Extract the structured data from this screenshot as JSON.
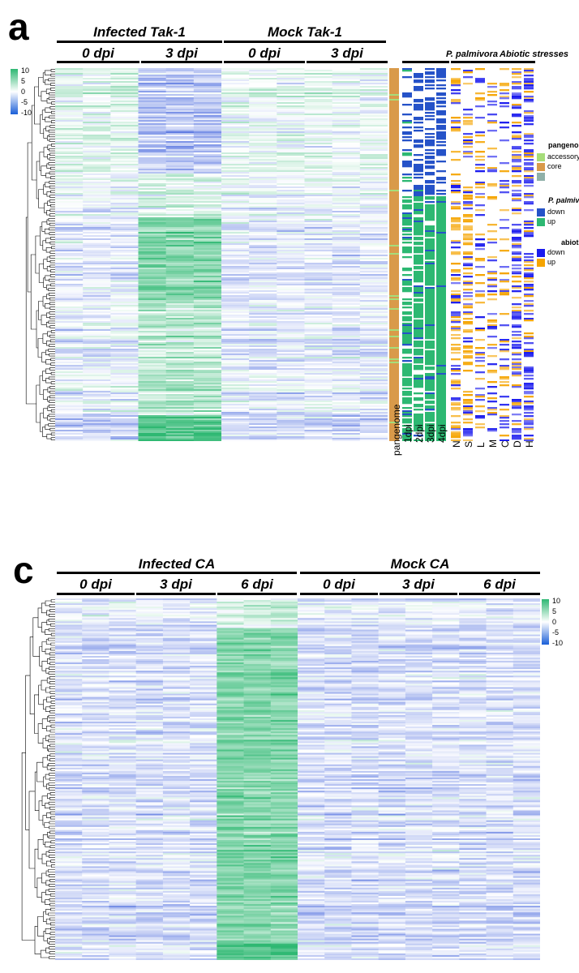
{
  "panel_a": {
    "letter": "a",
    "groups": [
      "Infected Tak-1",
      "Mock Tak-1"
    ],
    "timepoints": [
      "0 dpi",
      "3 dpi",
      "0 dpi",
      "3 dpi"
    ],
    "colorscale_ticks": [
      "10",
      "5",
      "0",
      "-5",
      "-10"
    ],
    "annotation_headers": [
      "P. palmivora",
      "Abiotic stresses"
    ],
    "annotation_columns": [
      "pangenome",
      "1dpi",
      "2dpi",
      "3dpi",
      "4dpi",
      "N",
      "S",
      "L",
      "M",
      "C",
      "D",
      "H"
    ],
    "legend": {
      "pangenome": {
        "title": "pangenome",
        "items": [
          "accessory",
          "core",
          ""
        ]
      },
      "ppalm": {
        "title": "P. palmivora",
        "items": [
          "down",
          "up"
        ]
      },
      "abiotic": {
        "title": "abiotic",
        "items": [
          "down",
          "up"
        ]
      }
    }
  },
  "panel_c": {
    "letter": "c",
    "groups": [
      "Infected CA",
      "Mock CA"
    ],
    "timepoints": [
      "0 dpi",
      "3 dpi",
      "6 dpi",
      "0 dpi",
      "3 dpi",
      "6 dpi"
    ],
    "colorscale_ticks": [
      "10",
      "5",
      "0",
      "-5",
      "-10"
    ]
  },
  "colors": {
    "high": "#2eb872",
    "mid": "#ffffff",
    "low": "#2a4fd8",
    "core": "#d99a4a",
    "accessory": "#a6dd7a",
    "other": "#8fb0a8",
    "pp_down": "#2552c8",
    "pp_up": "#2db872",
    "ab_down": "#1a1aee",
    "ab_up": "#f5a400"
  },
  "chart_data": [
    {
      "type": "heatmap",
      "title": "a",
      "column_groups": [
        {
          "name": "Infected Tak-1",
          "timepoints": [
            "0 dpi",
            "3 dpi"
          ]
        },
        {
          "name": "Mock Tak-1",
          "timepoints": [
            "0 dpi",
            "3 dpi"
          ]
        }
      ],
      "columns": 12,
      "rows": 600,
      "value_range": [
        -10,
        10
      ],
      "colorscale": [
        "-10 blue",
        "0 white",
        "10 green"
      ],
      "cluster_profile": [
        {
          "rows_frac": [
            0.0,
            0.28
          ],
          "infected_3dpi": -3,
          "infected_0dpi": 1,
          "mock": 0.5
        },
        {
          "rows_frac": [
            0.28,
            0.4
          ],
          "infected_3dpi": 1.5,
          "infected_0dpi": 0,
          "mock": 0
        },
        {
          "rows_frac": [
            0.4,
            0.62
          ],
          "infected_3dpi": 6,
          "infected_0dpi": -1,
          "mock": -1
        },
        {
          "rows_frac": [
            0.62,
            0.93
          ],
          "infected_3dpi": 3,
          "infected_0dpi": -0.5,
          "mock": -1
        },
        {
          "rows_frac": [
            0.93,
            1.0
          ],
          "infected_3dpi": 8,
          "infected_0dpi": -2,
          "mock": -2
        }
      ],
      "annotations": [
        "pangenome",
        "P. palmivora 1dpi-4dpi",
        "Abiotic stresses N S L M C D H"
      ]
    },
    {
      "type": "heatmap",
      "title": "c",
      "column_groups": [
        {
          "name": "Infected CA",
          "timepoints": [
            "0 dpi",
            "3 dpi",
            "6 dpi"
          ]
        },
        {
          "name": "Mock CA",
          "timepoints": [
            "0 dpi",
            "3 dpi",
            "6 dpi"
          ]
        }
      ],
      "columns": 18,
      "rows": 600,
      "value_range": [
        -10,
        10
      ],
      "colorscale": [
        "-10 blue",
        "0 white",
        "10 green"
      ],
      "cluster_profile": [
        {
          "rows_frac": [
            0.0,
            0.08
          ],
          "infected_6dpi": 2,
          "others": -1
        },
        {
          "rows_frac": [
            0.08,
            0.95
          ],
          "infected_6dpi": 6,
          "infected_0dpi": -1.5,
          "infected_3dpi": -1.5,
          "mock": -1.5
        },
        {
          "rows_frac": [
            0.95,
            1.0
          ],
          "infected_6dpi": 8,
          "others": -2
        }
      ]
    }
  ]
}
